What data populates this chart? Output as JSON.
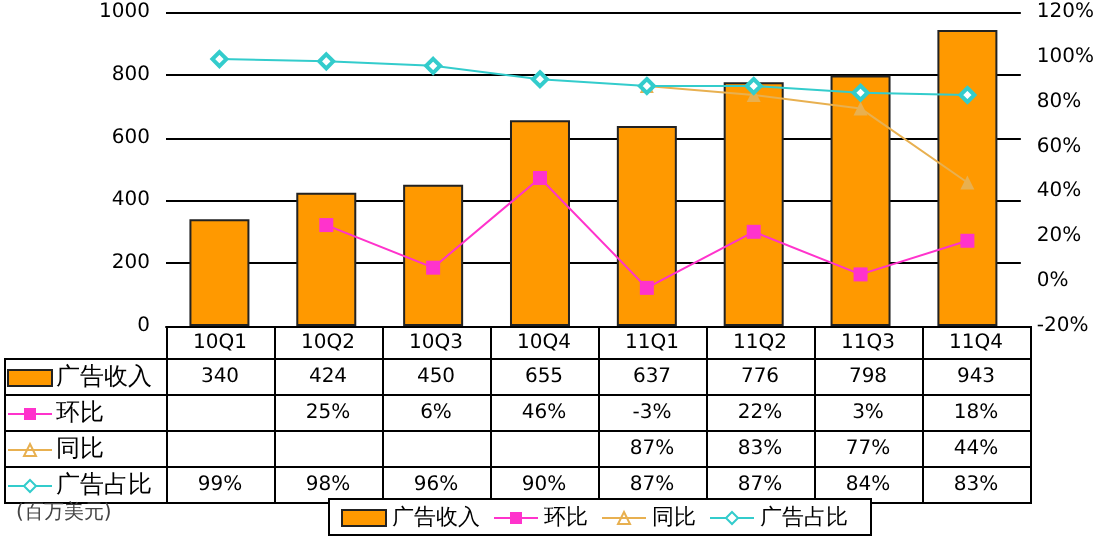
{
  "chart_data": {
    "type": "bar",
    "categories": [
      "10Q1",
      "10Q2",
      "10Q3",
      "10Q4",
      "11Q1",
      "11Q2",
      "11Q3",
      "11Q4"
    ],
    "series": [
      {
        "name": "广告收入",
        "color": "#ff9900",
        "values": [
          340,
          424,
          450,
          655,
          637,
          776,
          798,
          943
        ],
        "value_labels": [
          "340",
          "424",
          "450",
          "655",
          "637",
          "776",
          "798",
          "943"
        ]
      },
      {
        "name": "环比",
        "type": "line",
        "axis": "y2",
        "marker": "square",
        "color": "#ff33cc",
        "values": [
          null,
          25,
          6,
          46,
          -3,
          22,
          3,
          18
        ],
        "value_labels": [
          null,
          "25%",
          "6%",
          "46%",
          "-3%",
          "22%",
          "3%",
          "18%"
        ]
      },
      {
        "name": "同比",
        "type": "line",
        "axis": "y2",
        "marker": "triangle",
        "color": "#e8b050",
        "values": [
          null,
          null,
          null,
          null,
          87,
          83,
          77,
          44
        ],
        "value_labels": [
          null,
          null,
          null,
          null,
          "87%",
          "83%",
          "77%",
          "44%"
        ]
      },
      {
        "name": "广告占比",
        "type": "line",
        "axis": "y2",
        "marker": "diamond",
        "color": "#33cccc",
        "values": [
          99,
          98,
          96,
          90,
          87,
          87,
          84,
          83
        ],
        "value_labels": [
          "99%",
          "98%",
          "96%",
          "90%",
          "87%",
          "87%",
          "84%",
          "83%"
        ]
      }
    ],
    "ylim": [
      0,
      1000
    ],
    "yticks": [
      0,
      200,
      400,
      600,
      800,
      1000
    ],
    "y2lim": [
      -20,
      120
    ],
    "y2ticks": [
      {
        "value": -20,
        "label": "-20%"
      },
      {
        "value": 0,
        "label": "0%"
      },
      {
        "value": 20,
        "label": "20%"
      },
      {
        "value": 40,
        "label": "40%"
      },
      {
        "value": 60,
        "label": "60%"
      },
      {
        "value": 80,
        "label": "80%"
      },
      {
        "value": 100,
        "label": "100%"
      },
      {
        "value": 120,
        "label": "120%"
      }
    ],
    "grid": "y",
    "legend": "bottom",
    "annotations": [
      "(百万美元)"
    ]
  }
}
